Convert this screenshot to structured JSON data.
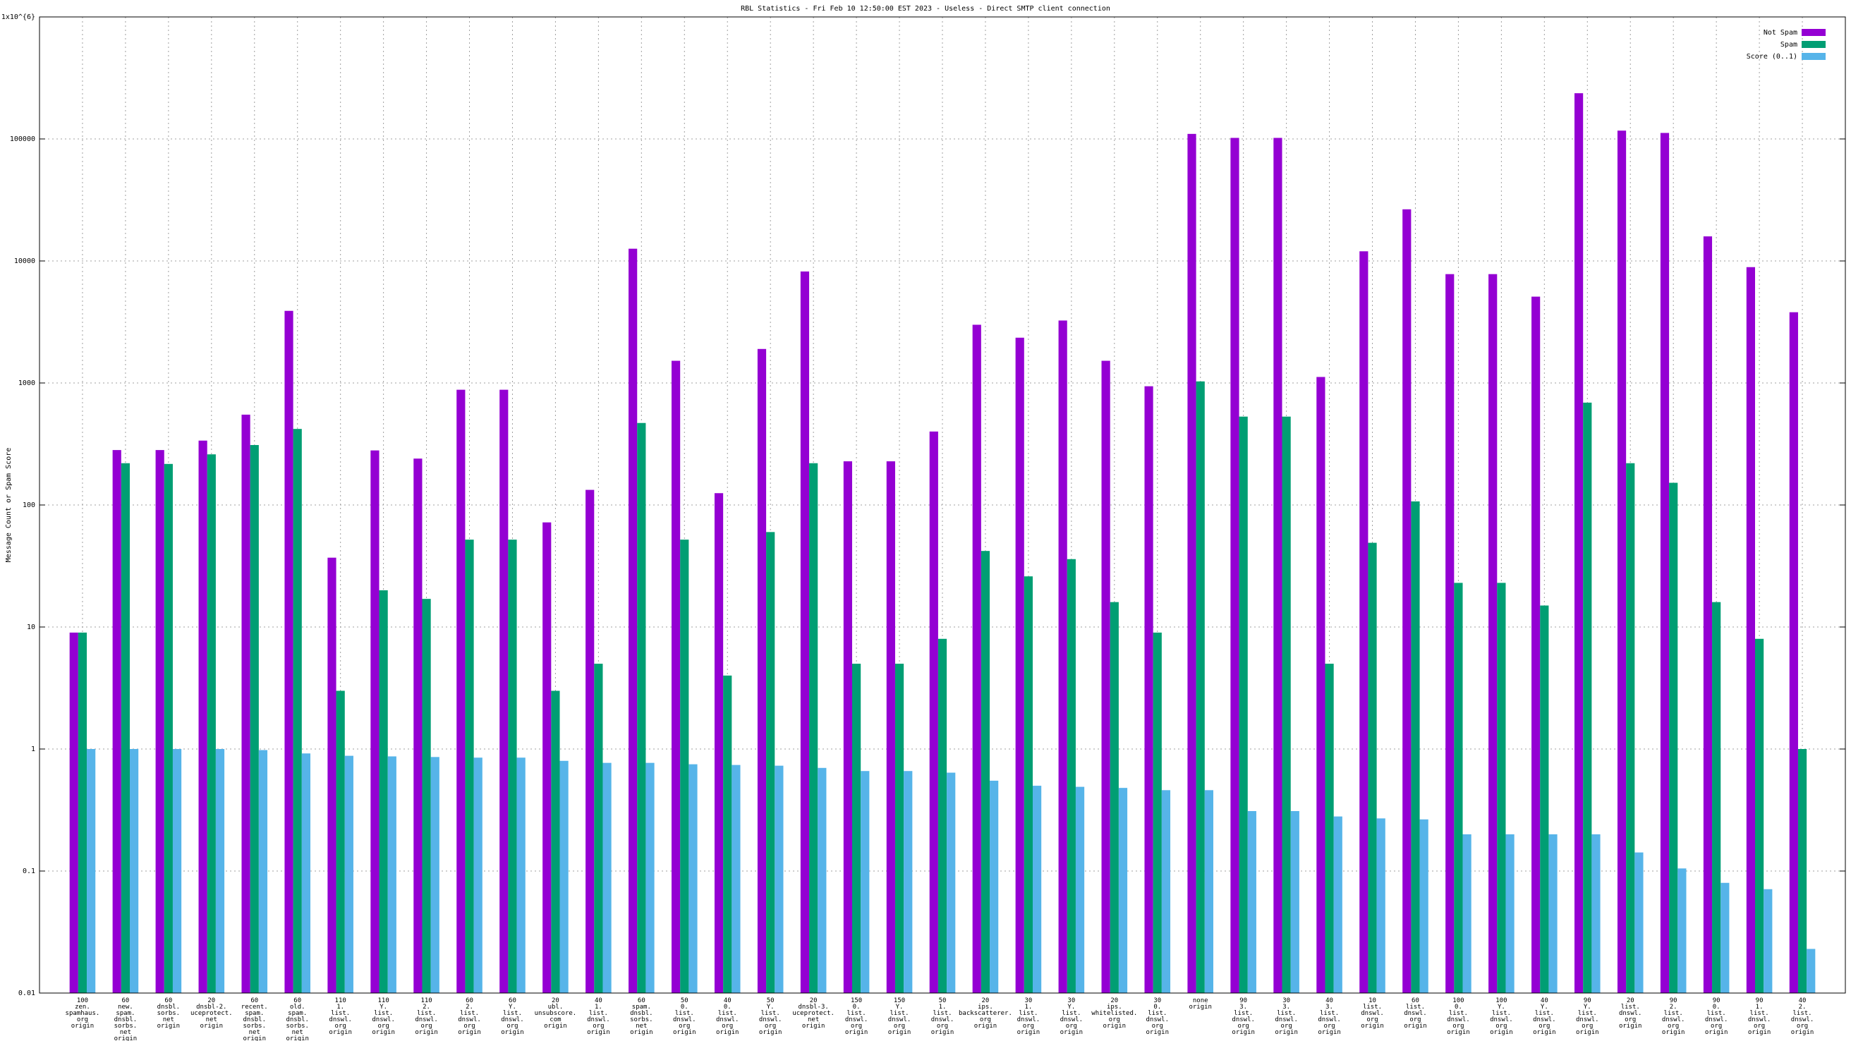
{
  "chart_data": {
    "type": "bar",
    "title": "RBL Statistics - Fri Feb 10 12:50:00 EST 2023 - Useless - Direct SMTP client connection",
    "y_label": "Message Count or Spam Score",
    "log_scale": "y",
    "grid": true,
    "legend": "top-right",
    "ylim": [
      0.01,
      1000000
    ],
    "yticks": [
      0.01,
      0.1,
      1,
      10,
      100,
      1000,
      10000,
      100000,
      {
        "value": 1000000,
        "label": "1x10^{6}"
      }
    ],
    "categories": [
      "100\nzen.\nspamhaus.\norg\norigin",
      "60\nnew.\nspam.\ndnsbl.\nsorbs.\nnet\norigin",
      "60\ndnsbl.\nsorbs.\nnet\norigin",
      "20\ndnsbl-2.\nuceprotect.\nnet\norigin",
      "60\nrecent.\nspam.\ndnsbl.\nsorbs.\nnet\norigin",
      "60\nold.\nspam.\ndnsbl.\nsorbs.\nnet\norigin",
      "110\n1.\nlist.\ndnswl.\norg\norigin",
      "110\nY.\nlist.\ndnswl.\norg\norigin",
      "110\n2.\nlist.\ndnswl.\norg\norigin",
      "60\n2.\nlist.\ndnswl.\norg\norigin",
      "60\nY.\nlist.\ndnswl.\norg\norigin",
      "20\nubl.\nunsubscore.\ncom\norigin",
      "40\n1.\nlist.\ndnswl.\norg\norigin",
      "60\nspam.\ndnsbl.\nsorbs.\nnet\norigin",
      "50\n0.\nlist.\ndnswl.\norg\norigin",
      "40\n0.\nlist.\ndnswl.\norg\norigin",
      "50\nY.\nlist.\ndnswl.\norg\norigin",
      "20\ndnsbl-3.\nuceprotect.\nnet\norigin",
      "150\n0.\nlist.\ndnswl.\norg\norigin",
      "150\nY.\nlist.\ndnswl.\norg\norigin",
      "50\n1.\nlist.\ndnswl.\norg\norigin",
      "20\nips.\nbackscatterer.\norg\norigin",
      "30\n1.\nlist.\ndnswl.\norg\norigin",
      "30\nY.\nlist.\ndnswl.\norg\norigin",
      "20\nips.\nwhitelisted.\norg\norigin",
      "30\n0.\nlist.\ndnswl.\norg\norigin",
      "none\norigin",
      "90\n3.\nlist.\ndnswl.\norg\norigin",
      "30\n3.\nlist.\ndnswl.\norg\norigin",
      "40\n3.\nlist.\ndnswl.\norg\norigin",
      "10\nlist.\ndnswl.\norg\norigin",
      "60\nlist.\ndnswl.\norg\norigin",
      "100\n0.\nlist.\ndnswl.\norg\norigin",
      "100\nY.\nlist.\ndnswl.\norg\norigin",
      "40\nY.\nlist.\ndnswl.\norg\norigin",
      "90\nY.\nlist.\ndnswl.\norg\norigin",
      "20\nlist.\ndnswl.\norg\norigin",
      "90\n2.\nlist.\ndnswl.\norg\norigin",
      "90\n0.\nlist.\ndnswl.\norg\norigin",
      "90\n1.\nlist.\ndnswl.\norg\norigin",
      "40\n2.\nlist.\ndnswl.\norg\norigin"
    ],
    "series": [
      {
        "name": "Not Spam",
        "color": "#9400d3",
        "values": [
          9,
          282,
          282,
          337,
          550,
          3900,
          37,
          280,
          240,
          880,
          880,
          72,
          133,
          12600,
          1520,
          125,
          1900,
          8200,
          228,
          228,
          400,
          3000,
          2350,
          3250,
          1520,
          940,
          110000,
          102000,
          102000,
          1120,
          12000,
          26500,
          7800,
          7800,
          5100,
          237000,
          117000,
          112000,
          15900,
          8900,
          3800
        ]
      },
      {
        "name": "Spam",
        "color": "#009e73",
        "values": [
          9,
          220,
          217,
          260,
          310,
          420,
          3,
          20,
          17,
          52,
          52,
          3,
          5,
          470,
          52,
          4,
          60,
          220,
          5,
          5,
          8,
          42,
          26,
          36,
          16,
          9,
          1030,
          530,
          530,
          5,
          49,
          107,
          23,
          23,
          15,
          690,
          220,
          152,
          16,
          8,
          1
        ]
      },
      {
        "name": "Score (0..1)",
        "color": "#56b4e9",
        "values": [
          1,
          1,
          1,
          1,
          0.98,
          0.92,
          0.88,
          0.87,
          0.86,
          0.85,
          0.85,
          0.8,
          0.77,
          0.77,
          0.75,
          0.74,
          0.73,
          0.7,
          0.66,
          0.66,
          0.64,
          0.55,
          0.5,
          0.49,
          0.48,
          0.46,
          0.46,
          0.31,
          0.31,
          0.28,
          0.27,
          0.265,
          0.2,
          0.2,
          0.2,
          0.2,
          0.142,
          0.105,
          0.08,
          0.071,
          0.023
        ]
      }
    ]
  }
}
